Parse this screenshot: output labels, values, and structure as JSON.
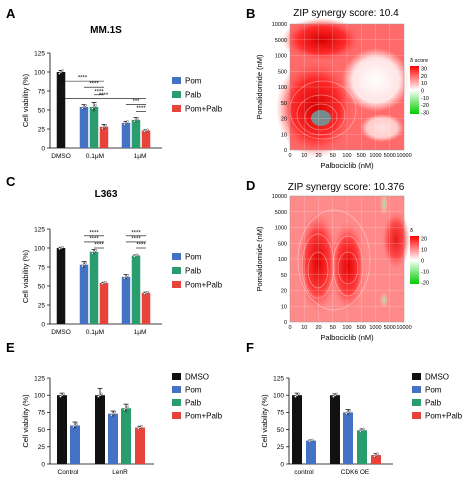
{
  "panel_letters": [
    "A",
    "B",
    "C",
    "D",
    "E",
    "F"
  ],
  "colors": {
    "DMSO": "#111111",
    "Pom": "#4472c4",
    "Palb": "#2a9d6e",
    "Pom+Palb": "#e8433a",
    "heat_red": "#ff1a1a",
    "heat_green": "#22c22a"
  },
  "chart_data": [
    {
      "panel": "A",
      "type": "bar",
      "title": "MM.1S",
      "ylabel": "Cell viability (%)",
      "ylim": [
        0,
        125
      ],
      "yticks": [
        "0",
        "25",
        "50",
        "75",
        "100",
        "125"
      ],
      "groups": [
        "DMSO",
        "0.1μM",
        "1μM"
      ],
      "legend": [
        "Pom",
        "Palb",
        "Pom+Palb"
      ],
      "series": [
        {
          "name": "DMSO",
          "values": [
            100,
            null,
            null
          ]
        },
        {
          "name": "Pom",
          "values": [
            null,
            54,
            33
          ]
        },
        {
          "name": "Palb",
          "values": [
            null,
            54,
            37
          ]
        },
        {
          "name": "Pom+Palb",
          "values": [
            null,
            28,
            23
          ]
        }
      ],
      "errors": [
        2,
        3,
        6,
        3,
        2,
        3,
        1
      ],
      "sig_labels": [
        "****",
        "****",
        "****",
        "***",
        "****",
        "****"
      ]
    },
    {
      "panel": "B",
      "type": "heatmap",
      "title": "ZIP synergy score: 10.4",
      "xlabel": "Palbociclib (nM)",
      "ylabel": "Pomalidomide (nM)",
      "xticks": [
        "0",
        "10",
        "20",
        "50",
        "100",
        "500",
        "1000",
        "5000",
        "10000"
      ],
      "yticks": [
        "0",
        "10",
        "20",
        "50",
        "100",
        "500",
        "1000",
        "5000",
        "10000"
      ],
      "colorbar_title": "δ  score",
      "colorbar_ticks": [
        "30",
        "20",
        "10",
        "0",
        "-10",
        "-20",
        "-30"
      ]
    },
    {
      "panel": "C",
      "type": "bar",
      "title": "L363",
      "ylabel": "Cell viability (%)",
      "ylim": [
        0,
        125
      ],
      "yticks": [
        "0",
        "25",
        "50",
        "75",
        "100",
        "125"
      ],
      "groups": [
        "DMSO",
        "0.1μM",
        "1μM"
      ],
      "legend": [
        "Pom",
        "Palb",
        "Pom+Palb"
      ],
      "series": [
        {
          "name": "DMSO",
          "values": [
            100,
            null,
            null
          ]
        },
        {
          "name": "Pom",
          "values": [
            null,
            78,
            62
          ]
        },
        {
          "name": "Palb",
          "values": [
            null,
            95,
            90
          ]
        },
        {
          "name": "Pom+Palb",
          "values": [
            null,
            54,
            41
          ]
        }
      ],
      "errors": [
        1,
        4,
        3,
        1,
        3,
        1,
        1
      ],
      "sig_labels": [
        "****",
        "****",
        "****",
        "****",
        "****",
        "****"
      ]
    },
    {
      "panel": "D",
      "type": "heatmap",
      "title": "ZIP synergy score: 10.376",
      "xlabel": "Palbociclib (nM)",
      "ylabel": "Pomalidomide (nM)",
      "xticks": [
        "0",
        "10",
        "20",
        "50",
        "100",
        "500",
        "1000",
        "5000",
        "10000"
      ],
      "yticks": [
        "0",
        "10",
        "20",
        "50",
        "100",
        "500",
        "1000",
        "5000",
        "10000"
      ],
      "colorbar_title": "δ",
      "colorbar_ticks": [
        "20",
        "10",
        "0",
        "-10",
        "-20"
      ]
    },
    {
      "panel": "E",
      "type": "bar",
      "title": "",
      "ylabel": "Cell viability (%)",
      "ylim": [
        0,
        125
      ],
      "yticks": [
        "0",
        "25",
        "50",
        "75",
        "100",
        "125"
      ],
      "groups": [
        "Control",
        "LenR"
      ],
      "legend": [
        "DMSO",
        "Pom",
        "Palb",
        "Pom+Palb"
      ],
      "series": [
        {
          "name": "DMSO",
          "values": [
            100,
            100
          ]
        },
        {
          "name": "Pom",
          "values": [
            56,
            73
          ]
        },
        {
          "name": "Palb",
          "values": [
            null,
            81
          ]
        },
        {
          "name": "Pom+Palb",
          "values": [
            null,
            53
          ]
        }
      ],
      "errors": [
        [
          3,
          10
        ],
        [
          5,
          4
        ],
        [
          null,
          6
        ],
        [
          null,
          2
        ]
      ]
    },
    {
      "panel": "F",
      "type": "bar",
      "title": "",
      "ylabel": "Cell viability (%)",
      "ylim": [
        0,
        125
      ],
      "yticks": [
        "0",
        "25",
        "50",
        "75",
        "100",
        "125"
      ],
      "groups": [
        "control",
        "CDK6 OE"
      ],
      "legend": [
        "DMSO",
        "Pom",
        "Palb",
        "Pom+Palb"
      ],
      "series": [
        {
          "name": "DMSO",
          "values": [
            100,
            100
          ]
        },
        {
          "name": "Pom",
          "values": [
            34,
            75
          ]
        },
        {
          "name": "Palb",
          "values": [
            null,
            49
          ]
        },
        {
          "name": "Pom+Palb",
          "values": [
            null,
            13
          ]
        }
      ],
      "errors": [
        [
          3,
          2
        ],
        [
          1,
          4
        ],
        [
          null,
          2
        ],
        [
          null,
          2
        ]
      ]
    }
  ]
}
